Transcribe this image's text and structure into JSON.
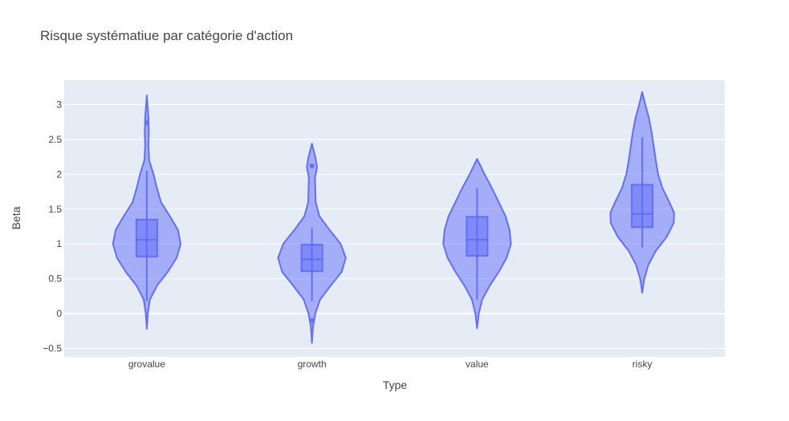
{
  "chart_data": {
    "type": "violin",
    "title": "Risque systématiue par catégorie d'action",
    "xlabel": "Type",
    "ylabel": "Beta",
    "ylim": [
      -0.62,
      3.35
    ],
    "yticks": [
      -0.5,
      0,
      0.5,
      1,
      1.5,
      2,
      2.5,
      3
    ],
    "ytick_labels": [
      "−0.5",
      "0",
      "0.5",
      "1",
      "1.5",
      "2",
      "2.5",
      "3"
    ],
    "grid": true,
    "plot_bg": "#e5ecf6",
    "fill_color": "#636efa",
    "categories": [
      "grovalue",
      "growth",
      "value",
      "risky"
    ],
    "series": [
      {
        "category": "grovalue",
        "min": -0.22,
        "max": 3.13,
        "q1": 0.82,
        "median": 1.06,
        "q3": 1.35,
        "whisker_low": 0.18,
        "whisker_high": 2.05,
        "outliers": [
          2.74
        ],
        "density": [
          [
            -0.22,
            0
          ],
          [
            0,
            0.03
          ],
          [
            0.2,
            0.09
          ],
          [
            0.4,
            0.3
          ],
          [
            0.6,
            0.62
          ],
          [
            0.8,
            0.88
          ],
          [
            1.0,
            1.0
          ],
          [
            1.2,
            0.92
          ],
          [
            1.4,
            0.68
          ],
          [
            1.6,
            0.42
          ],
          [
            1.8,
            0.3
          ],
          [
            2.0,
            0.2
          ],
          [
            2.2,
            0.07
          ],
          [
            2.4,
            0.05
          ],
          [
            2.6,
            0.06
          ],
          [
            2.8,
            0.05
          ],
          [
            3.0,
            0.02
          ],
          [
            3.13,
            0
          ]
        ]
      },
      {
        "category": "growth",
        "min": -0.42,
        "max": 2.44,
        "q1": 0.61,
        "median": 0.78,
        "q3": 0.99,
        "whisker_low": 0.18,
        "whisker_high": 1.23,
        "outliers": [
          2.12,
          -0.1
        ],
        "density": [
          [
            -0.42,
            0
          ],
          [
            -0.2,
            0.03
          ],
          [
            0,
            0.1
          ],
          [
            0.2,
            0.24
          ],
          [
            0.4,
            0.55
          ],
          [
            0.6,
            0.88
          ],
          [
            0.8,
            1.0
          ],
          [
            1.0,
            0.85
          ],
          [
            1.2,
            0.52
          ],
          [
            1.4,
            0.22
          ],
          [
            1.6,
            0.11
          ],
          [
            1.8,
            0.1
          ],
          [
            1.95,
            0.09
          ],
          [
            2.1,
            0.15
          ],
          [
            2.25,
            0.1
          ],
          [
            2.44,
            0
          ]
        ]
      },
      {
        "category": "value",
        "min": -0.21,
        "max": 2.22,
        "q1": 0.83,
        "median": 1.06,
        "q3": 1.39,
        "whisker_low": 0.2,
        "whisker_high": 1.8,
        "outliers": [],
        "density": [
          [
            -0.21,
            0
          ],
          [
            0,
            0.05
          ],
          [
            0.2,
            0.15
          ],
          [
            0.4,
            0.37
          ],
          [
            0.6,
            0.64
          ],
          [
            0.8,
            0.87
          ],
          [
            1.0,
            1.0
          ],
          [
            1.2,
            0.96
          ],
          [
            1.4,
            0.84
          ],
          [
            1.6,
            0.64
          ],
          [
            1.8,
            0.44
          ],
          [
            2.0,
            0.22
          ],
          [
            2.22,
            0
          ]
        ]
      },
      {
        "category": "risky",
        "min": 0.3,
        "max": 3.18,
        "q1": 1.24,
        "median": 1.43,
        "q3": 1.85,
        "whisker_low": 0.95,
        "whisker_high": 2.53,
        "outliers": [],
        "density": [
          [
            0.3,
            0
          ],
          [
            0.5,
            0.06
          ],
          [
            0.7,
            0.18
          ],
          [
            0.9,
            0.4
          ],
          [
            1.1,
            0.72
          ],
          [
            1.3,
            0.93
          ],
          [
            1.45,
            0.94
          ],
          [
            1.6,
            0.8
          ],
          [
            1.8,
            0.6
          ],
          [
            2.0,
            0.47
          ],
          [
            2.2,
            0.4
          ],
          [
            2.4,
            0.34
          ],
          [
            2.6,
            0.28
          ],
          [
            2.8,
            0.2
          ],
          [
            3.0,
            0.09
          ],
          [
            3.18,
            0
          ]
        ]
      }
    ]
  }
}
